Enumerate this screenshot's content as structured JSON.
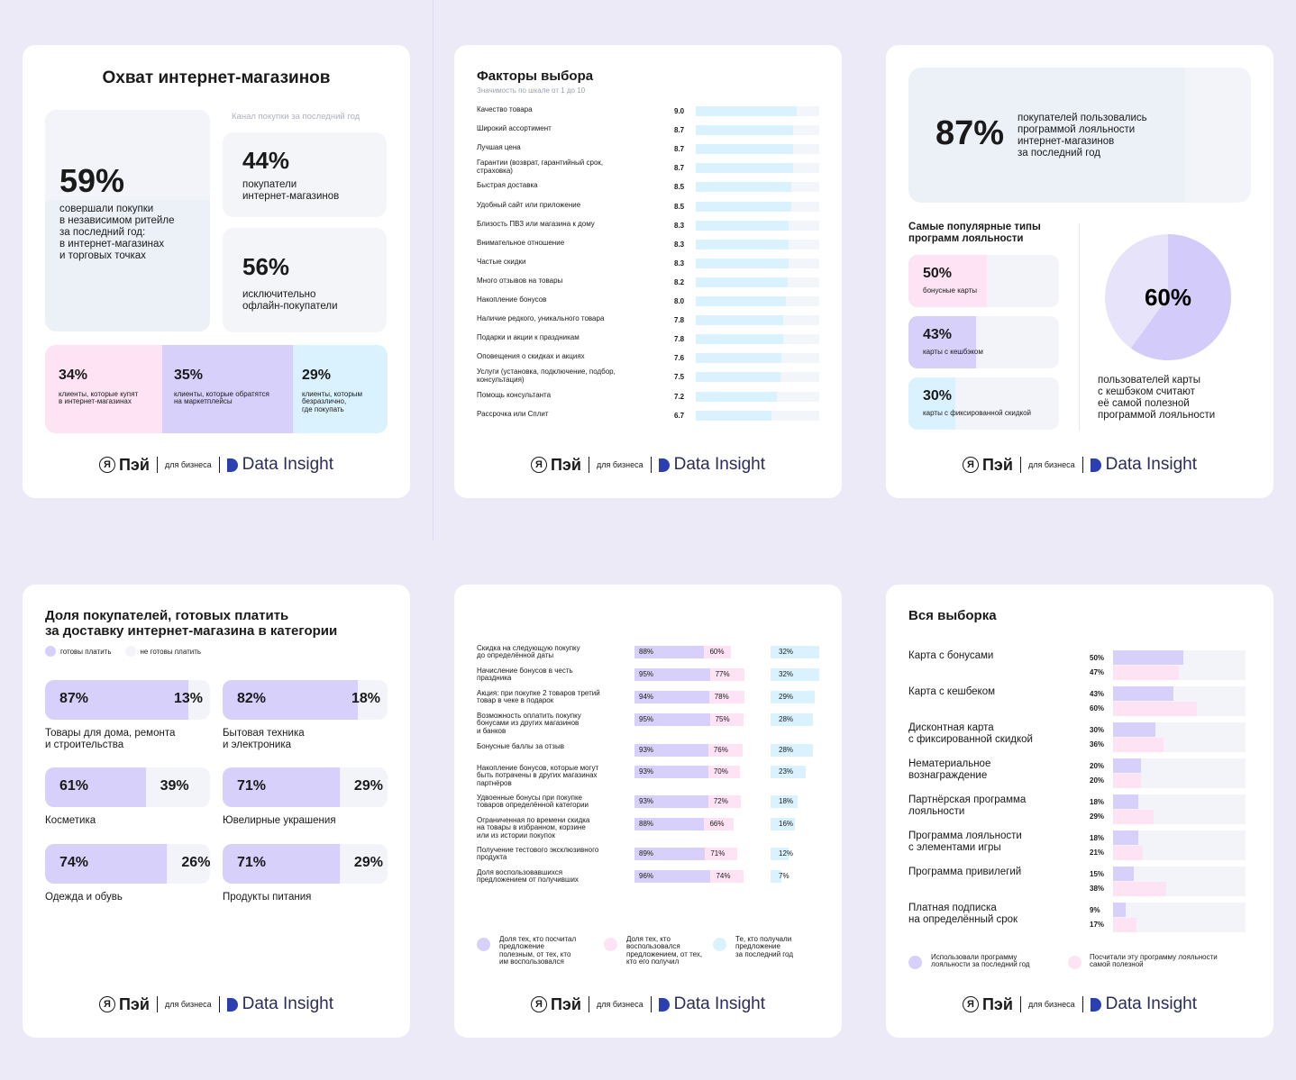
{
  "colors": {
    "bg": "#edeaf7",
    "lav": "#d7d0fb",
    "pink": "#fde3f3",
    "cyan": "#daf2fe",
    "grey": "#f2f4f9",
    "greyblue": "#ecf0f7",
    "light": "#f3f5f9"
  },
  "footer": {
    "logo_pay": "Пэй",
    "logo_ya": "Я",
    "biz": "для бизнеса",
    "data_insight": "Data Insight"
  },
  "card1": {
    "title": "Охват интернет-магазинов",
    "channel_label": "Канал покупки за последний год",
    "main_pct": "59%",
    "main_text": "совершали покупки\nв независимом ритейле\nза последний год:\nв интернет-магазинах\nи торговых точках",
    "box_a": {
      "pct": "44%",
      "text": "покупатели\nинтернет-магазинов"
    },
    "box_b": {
      "pct": "56%",
      "text": "исключительно\nофлайн-покупатели"
    },
    "split": [
      {
        "pct": "34%",
        "text": "клиенты, которые купят\nв интернет-магазинах"
      },
      {
        "pct": "35%",
        "text": "клиенты, которые обратятся\nна маркетплейсы"
      },
      {
        "pct": "29%",
        "text": "клиенты, которым\nбезразлично,\nгде покупать"
      }
    ]
  },
  "chart_data": [
    {
      "type": "bar",
      "title": "Факторы выбора",
      "subtitle": "Значимость по шкале от 1 до 10",
      "xlim": [
        0,
        10
      ],
      "categories": [
        "Качество товара",
        "Широкий ассортимент",
        "Лучшая цена",
        "Гарантии (возврат, гарантийный срок,\nстраховка)",
        "Быстрая доставка",
        "Удобный сайт или приложение",
        "Близость ПВЗ или магазина к дому",
        "Внимательное отношение",
        "Частые скидки",
        "Много отзывов на товары",
        "Накопление бонусов",
        "Наличие редкого, уникального товара",
        "Подарки и акции к праздникам",
        "Оповещения о скидках и акциях",
        "Услуги (установка, подключение, подбор,\nконсультация)",
        "Помощь консультанта",
        "Рассрочка или Сплит"
      ],
      "values": [
        9.0,
        8.7,
        8.7,
        8.7,
        8.5,
        8.5,
        8.3,
        8.3,
        8.3,
        8.2,
        8.0,
        7.8,
        7.8,
        7.6,
        7.5,
        7.2,
        6.7
      ],
      "labels": [
        "9.0",
        "8.7",
        "8.7",
        "8.7",
        "8.5",
        "8.5",
        "8.3",
        "8.3",
        "8.3",
        "8.2",
        "8.0",
        "7.8",
        "7.8",
        "7.6",
        "7.5",
        "7.2",
        "6.7"
      ]
    },
    {
      "type": "pie",
      "values": [
        60,
        40
      ],
      "label": "60%",
      "caption": "пользователей карты\nс кешбэком считают\neё самой полезной\nпрограммой лояльности"
    },
    {
      "type": "bar",
      "title": "Доля покупателей, готовых платить\nза доставку интернет-магазина в категории",
      "legend": [
        "готовы платить",
        "не готовы платить"
      ],
      "categories": [
        "Товары для дома, ремонта\nи строительства",
        "Бытовая техника\nи электроника",
        "Косметика",
        "Ювелирные украшения",
        "Одежда и обувь",
        "Продукты питания"
      ],
      "series": [
        {
          "name": "готовы платить",
          "values": [
            87,
            82,
            61,
            71,
            74,
            71
          ]
        },
        {
          "name": "не готовы платить",
          "values": [
            13,
            18,
            39,
            29,
            26,
            29
          ]
        }
      ]
    },
    {
      "type": "bar",
      "categories": [
        "Скидка на следующую покупку\nдо определённой даты",
        "Начисление бонусов в честь\nпраздника",
        "Акция: при покупке 2 товаров третий\nтовар в чеке в подарок",
        "Возможность оплатить покупку\nбонусами из других магазинов\nи банков",
        "Бонусные баллы за отзыв",
        "Накопление бонусов, которые могут\nбыть потрачены в других магазинах\nпартнёров",
        "Удвоенные бонусы при покупке\nтоваров определённой категории",
        "Ограниченная по времени скидка\nна товары в избранном, корзине\nили из истории покупок",
        "Получение тестового эксклюзивного\nпродукта",
        "Доля воспользовавшихся\nпредложением от получивших"
      ],
      "series": [
        {
          "name": "Доля тех, кто посчитал предложение полезным, от тех, кто им воспользовался",
          "values": [
            88,
            95,
            94,
            95,
            93,
            93,
            93,
            88,
            89,
            96
          ]
        },
        {
          "name": "Доля тех, кто воспользовался предложением, от тех, кто его получил",
          "values": [
            60,
            77,
            78,
            75,
            76,
            70,
            72,
            66,
            71,
            74
          ]
        },
        {
          "name": "Те, кто получали предложение за последний год",
          "values": [
            32,
            32,
            29,
            28,
            28,
            23,
            18,
            16,
            12,
            7
          ]
        }
      ],
      "legend": [
        "Доля тех, кто посчитал\nпредложение\nполезным, от тех, кто\nим воспользовался",
        "Доля тех, кто\nвоспользовался\nпредложением, от тех,\nкто его получил",
        "Те, кто получали\nпредложение\nза последний год"
      ]
    },
    {
      "type": "bar",
      "title": "Вся выборка",
      "categories": [
        "Карта с бонусами",
        "Карта с кешбеком",
        "Дисконтная карта\nс фиксированной скидкой",
        "Нематериальное\nвознаграждение",
        "Партнёрская программа\nлояльности",
        "Программа лояльности\nс элементами игры",
        "Программа привилегий",
        "Платная подписка\nна определённый срок"
      ],
      "series": [
        {
          "name": "Использовали программу лояльности за последний год",
          "values": [
            50,
            43,
            30,
            20,
            18,
            18,
            15,
            9
          ]
        },
        {
          "name": "Посчитали эту программу лояльности самой полезной",
          "values": [
            47,
            60,
            36,
            20,
            29,
            21,
            38,
            17
          ]
        }
      ],
      "legend": [
        "Использовали программу\nлояльности за последний год",
        "Посчитали эту программу лояльности\nсамой полезной"
      ]
    }
  ],
  "card3": {
    "top_pct": "87%",
    "top_text": "покупателей пользовались\nпрограммой лояльности\nинтернет-магазинов\nза последний год",
    "sub_title": "Самые популярные типы\nпрограмм лояльности",
    "types": [
      {
        "pct": "50%",
        "text": "бонусные карты",
        "value": 50,
        "color": "#fde3f3"
      },
      {
        "pct": "43%",
        "text": "карты с кешбэком",
        "value": 43,
        "color": "#d7d0fb"
      },
      {
        "pct": "30%",
        "text": "карты с фиксированной скидкой",
        "value": 30,
        "color": "#daf2fe"
      }
    ]
  }
}
